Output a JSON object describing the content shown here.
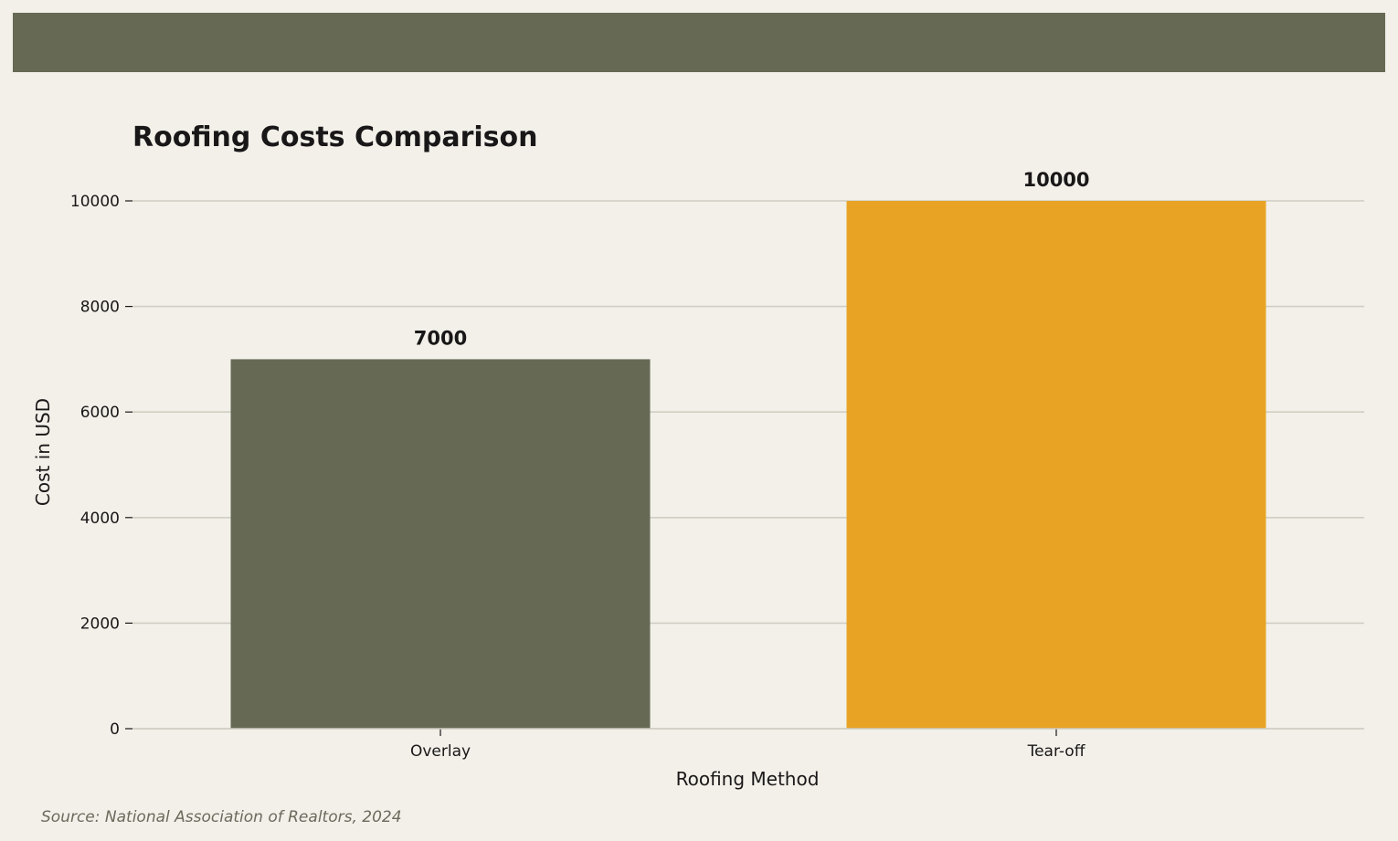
{
  "chart_data": {
    "type": "bar",
    "title": "Roofing Costs Comparison",
    "categories": [
      "Overlay",
      "Tear-off"
    ],
    "values": [
      7000,
      10000
    ],
    "colors": [
      "#666a55",
      "#e8a325"
    ],
    "xlabel": "Roofing Method",
    "ylabel": "Cost in USD",
    "ylim": [
      0,
      10000
    ],
    "yticks": [
      0,
      2000,
      4000,
      6000,
      8000,
      10000
    ],
    "grid": "horizontal",
    "legend": "none"
  },
  "source": "Source: National Association of Realtors, 2024",
  "colors": {
    "background": "#f2f0e9",
    "banner": "#666a55",
    "grid": "#d0cec3",
    "text": "#1a1718"
  }
}
